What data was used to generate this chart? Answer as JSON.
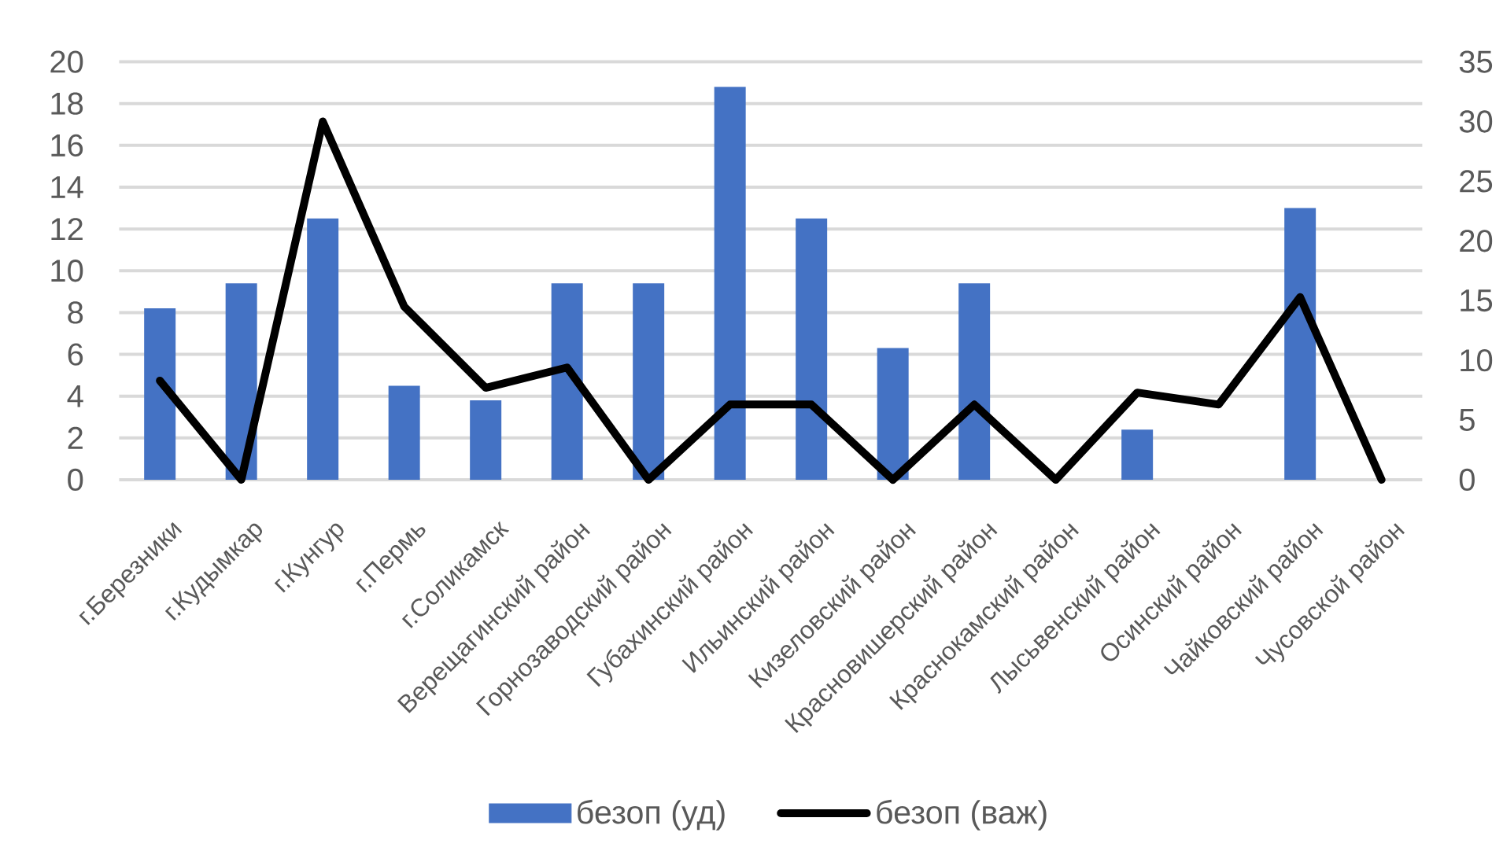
{
  "chart_data": {
    "type": "bar",
    "categories": [
      "г.Березники",
      "г.Кудымкар",
      "г.Кунгур",
      "г.Пермь",
      "г.Соликамск",
      "Верещагинский район",
      "Горнозаводский район",
      "Губахинский район",
      "Ильинский район",
      "Кизеловский район",
      "Красновишерский район",
      "Краснокамский район",
      "Лысьвенский район",
      "Осинский район",
      "Чайковский район",
      "Чусовской район"
    ],
    "series": [
      {
        "name": "безоп (уд)",
        "color": "#4472c4",
        "values": [
          8.2,
          9.4,
          12.5,
          4.5,
          3.8,
          9.4,
          9.4,
          18.8,
          12.5,
          6.3,
          9.4,
          0,
          2.4,
          0,
          13.0,
          0
        ]
      },
      {
        "name": "безоп (важ)",
        "type": "line",
        "axis": "y2",
        "color": "#000000",
        "values": [
          8.3,
          0,
          30.0,
          14.5,
          7.7,
          9.4,
          0,
          6.3,
          6.3,
          0,
          6.3,
          0,
          7.3,
          6.3,
          15.3,
          0
        ]
      }
    ],
    "ylim": [
      0,
      20
    ],
    "yticks": [
      0,
      2,
      4,
      6,
      8,
      10,
      12,
      14,
      16,
      18,
      20
    ],
    "y2lim": [
      0,
      35
    ],
    "y2ticks": [
      0,
      5,
      10,
      15,
      20,
      25,
      30,
      35
    ],
    "grid": "y",
    "legend": "bottom"
  }
}
